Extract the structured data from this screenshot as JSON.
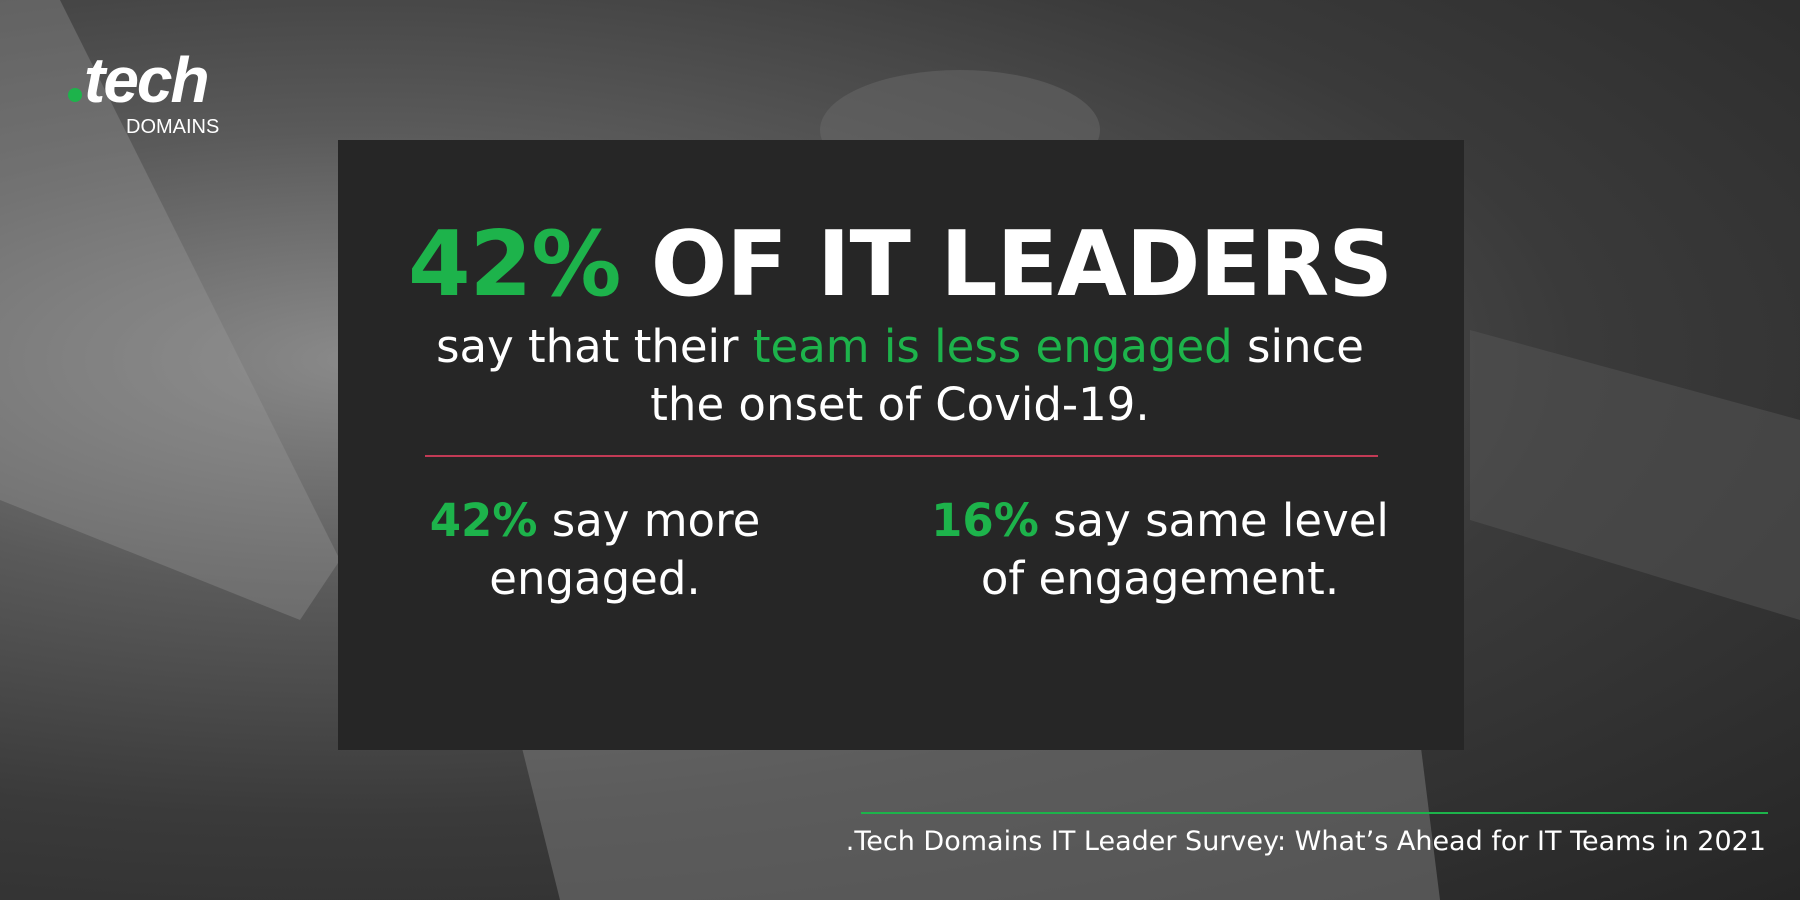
{
  "logo": {
    "name": "tech",
    "sub": "DOMAINS"
  },
  "headline": {
    "stat": "42%",
    "text": "OF IT LEADERS"
  },
  "subtext": {
    "before": "say that their",
    "highlight": "team is less engaged",
    "after": "since the onset of Covid-19."
  },
  "stats": [
    {
      "value": "42%",
      "text": "say more engaged."
    },
    {
      "value": "16%",
      "text": "say same level of engagement."
    }
  ],
  "footer": ".Tech Domains IT Leader Survey: What’s Ahead for IT Teams in 2021"
}
